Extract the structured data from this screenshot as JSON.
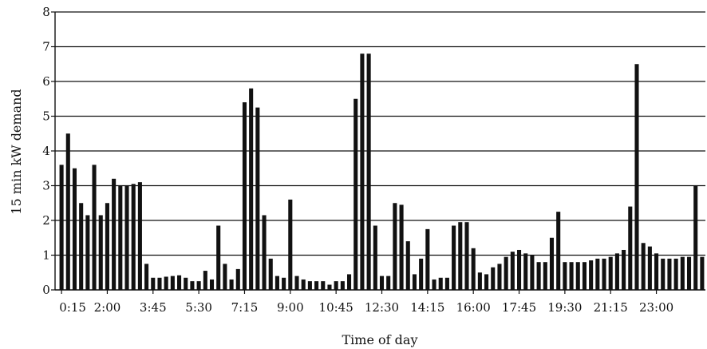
{
  "chart_data": {
    "type": "bar",
    "title": "",
    "xlabel": "Time of day",
    "ylabel": "15 min kW demand",
    "ylim": [
      0,
      8
    ],
    "y_ticks": [
      0,
      1,
      2,
      3,
      4,
      5,
      6,
      7,
      8
    ],
    "x_tick_labels": [
      "0:15",
      "2:00",
      "3:45",
      "5:30",
      "7:15",
      "9:00",
      "10:45",
      "12:30",
      "14:15",
      "16:00",
      "17:45",
      "19:30",
      "21:15",
      "23:00"
    ],
    "x_tick_interval": 7,
    "grid": "horizontal",
    "bar_color": "#111111",
    "values": [
      3.6,
      4.5,
      3.5,
      2.5,
      2.15,
      3.6,
      2.15,
      2.5,
      3.2,
      3.0,
      3.0,
      3.05,
      3.1,
      0.75,
      0.35,
      0.35,
      0.38,
      0.4,
      0.42,
      0.35,
      0.25,
      0.25,
      0.55,
      0.3,
      1.85,
      0.75,
      0.3,
      0.6,
      5.4,
      5.8,
      5.25,
      2.15,
      0.9,
      0.4,
      0.35,
      2.6,
      0.4,
      0.3,
      0.25,
      0.25,
      0.25,
      0.15,
      0.25,
      0.25,
      0.45,
      5.5,
      6.8,
      6.8,
      1.85,
      0.4,
      0.4,
      2.5,
      2.45,
      1.4,
      0.45,
      0.9,
      1.75,
      0.3,
      0.35,
      0.35,
      1.85,
      1.95,
      1.95,
      1.2,
      0.5,
      0.45,
      0.65,
      0.75,
      0.95,
      1.1,
      1.15,
      1.05,
      1.0,
      0.8,
      0.8,
      1.5,
      2.25,
      0.8,
      0.8,
      0.8,
      0.8,
      0.85,
      0.9,
      0.9,
      0.95,
      1.05,
      1.15,
      2.4,
      6.5,
      1.35,
      1.25,
      1.05,
      0.9,
      0.9,
      0.9,
      0.95,
      0.95,
      3.0,
      0.95
    ]
  }
}
